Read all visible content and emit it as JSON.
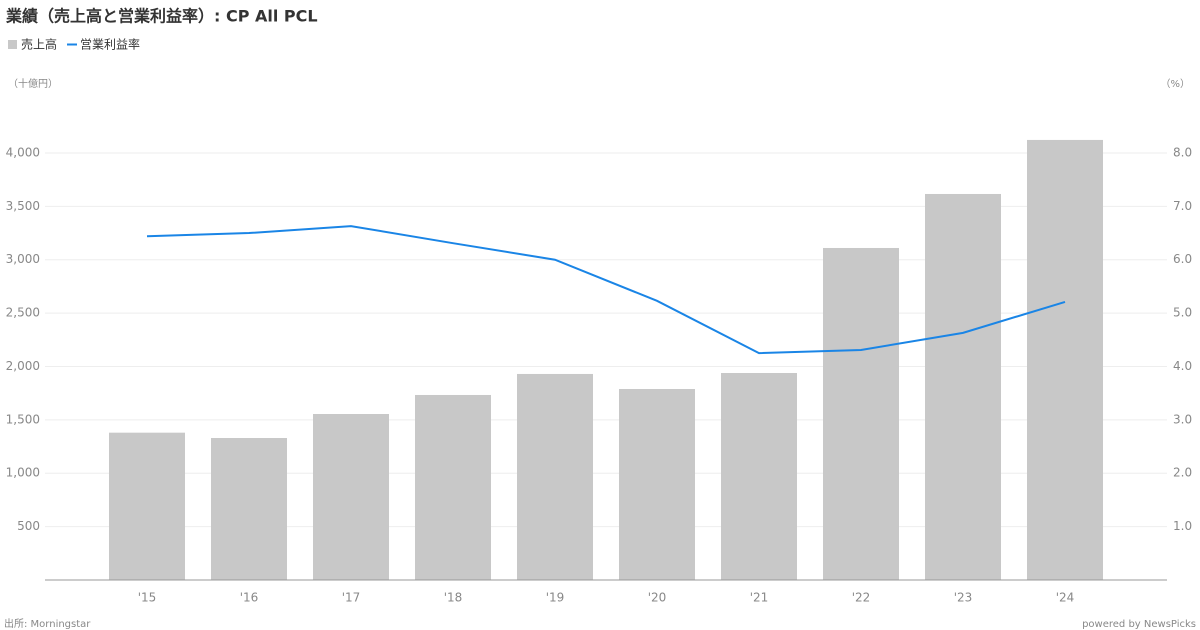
{
  "chart_data": {
    "type": "bar_line",
    "title": "業績（売上高と営業利益率）: CP All PCL",
    "y_axis_label": "（十億円）",
    "y2_axis_label": "（%）",
    "source": "出所: Morningstar",
    "credit": "powered by NewsPicks",
    "categories": [
      "'15",
      "'16",
      "'17",
      "'18",
      "'19",
      "'20",
      "'21",
      "'22",
      "'23",
      "'24"
    ],
    "series": [
      {
        "name": "売上高",
        "type": "bar",
        "color": "#c8c8c8",
        "values": [
          1380,
          1330,
          1555,
          1733,
          1930,
          1789,
          1939,
          3110,
          3616,
          4122
        ]
      },
      {
        "name": "営業利益率",
        "type": "line",
        "axis": "y2",
        "color": "#1a85e6",
        "values": [
          6.44,
          6.5,
          6.63,
          6.31,
          6.0,
          5.23,
          4.25,
          4.31,
          4.63,
          5.21
        ]
      }
    ],
    "ylim": [
      0,
      4500
    ],
    "yticks": [
      {
        "value": 500,
        "label": "500"
      },
      {
        "value": 1000,
        "label": "1,000"
      },
      {
        "value": 1500,
        "label": "1,500"
      },
      {
        "value": 2000,
        "label": "2,000"
      },
      {
        "value": 2500,
        "label": "2,500"
      },
      {
        "value": 3000,
        "label": "3,000"
      },
      {
        "value": 3500,
        "label": "3,500"
      },
      {
        "value": 4000,
        "label": "4,000"
      }
    ],
    "y2lim": [
      0,
      9
    ],
    "y2ticks": [
      {
        "value": 1,
        "label": "1.0"
      },
      {
        "value": 2,
        "label": "2.0"
      },
      {
        "value": 3,
        "label": "3.0"
      },
      {
        "value": 4,
        "label": "4.0"
      },
      {
        "value": 5,
        "label": "5.0"
      },
      {
        "value": 6,
        "label": "6.0"
      },
      {
        "value": 7,
        "label": "7.0"
      },
      {
        "value": 8,
        "label": "8.0"
      }
    ],
    "grid": true
  }
}
